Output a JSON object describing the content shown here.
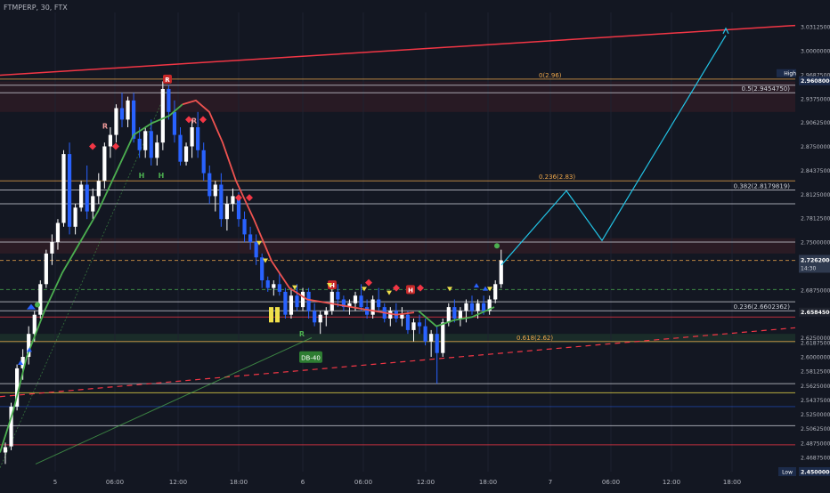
{
  "header": {
    "title": "FTMPERP, 30, FTX"
  },
  "colors": {
    "background": "#131722",
    "up_candle": "#ffffff",
    "down_candle": "#2962ff",
    "accent_red": "#f23645",
    "accent_green": "#4caf50",
    "projection": "#22c4e6",
    "fib_orange": "#f0a84b",
    "current_price_bg": "#2f3a4f"
  },
  "chart_data": {
    "type": "candlestick",
    "ylim": [
      2.45,
      3.05
    ],
    "price_ticks": [
      "3.0312500",
      "3.0000000",
      "2.9687500",
      "2.9375000",
      "2.9062500",
      "2.8750000",
      "2.8437500",
      "2.8125000",
      "2.7812500",
      "2.7500000",
      "2.7187500",
      "2.6875000",
      "2.6562500",
      "2.6250000",
      "2.6187500",
      "2.6000000",
      "2.5812500",
      "2.5625000",
      "2.5437500",
      "2.5250000",
      "2.5062500",
      "2.4875000",
      "2.4687500",
      "2.4500000"
    ],
    "time_ticks": [
      "5",
      "06:00",
      "12:00",
      "18:00",
      "6",
      "06:00",
      "12:00",
      "18:00",
      "7",
      "06:00",
      "12:00",
      "18:00"
    ],
    "high_label": "High",
    "high_value": "2.9608000",
    "low_label": "Low",
    "low_value": "2.4500000",
    "current_price": "2.7262000",
    "countdown": "14:30",
    "secondary_price": "2.6584500",
    "fib_labels": [
      {
        "text": "0(2.96)",
        "price": 2.963,
        "color": "#f0a84b"
      },
      {
        "text": "0.5(2.9454750)",
        "price": 2.9455,
        "color": "#d1d4dc"
      },
      {
        "text": "0.236(2.83)",
        "price": 2.83,
        "color": "#f0a84b"
      },
      {
        "text": "0.382(2.8179819)",
        "price": 2.818,
        "color": "#d1d4dc"
      },
      {
        "text": "0.236(2.6602362)",
        "price": 2.6602,
        "color": "#d1d4dc"
      },
      {
        "text": "0.618(2.62)",
        "price": 2.62,
        "color": "#f0a84b"
      }
    ],
    "annotation": "DB-40",
    "candles": [
      [
        2.475,
        2.488,
        2.46,
        2.482
      ],
      [
        2.483,
        2.54,
        2.478,
        2.535
      ],
      [
        2.535,
        2.59,
        2.53,
        2.585
      ],
      [
        2.585,
        2.61,
        2.57,
        2.6
      ],
      [
        2.6,
        2.64,
        2.59,
        2.63
      ],
      [
        2.63,
        2.66,
        2.62,
        2.655
      ],
      [
        2.655,
        2.7,
        2.65,
        2.695
      ],
      [
        2.695,
        2.74,
        2.69,
        2.735
      ],
      [
        2.735,
        2.76,
        2.72,
        2.75
      ],
      [
        2.75,
        2.78,
        2.74,
        2.775
      ],
      [
        2.775,
        2.87,
        2.77,
        2.865
      ],
      [
        2.865,
        2.88,
        2.76,
        2.77
      ],
      [
        2.77,
        2.8,
        2.76,
        2.795
      ],
      [
        2.795,
        2.83,
        2.79,
        2.825
      ],
      [
        2.825,
        2.85,
        2.78,
        2.79
      ],
      [
        2.79,
        2.82,
        2.78,
        2.81
      ],
      [
        2.81,
        2.84,
        2.8,
        2.83
      ],
      [
        2.83,
        2.88,
        2.82,
        2.875
      ],
      [
        2.875,
        2.9,
        2.86,
        2.89
      ],
      [
        2.89,
        2.93,
        2.88,
        2.925
      ],
      [
        2.925,
        2.945,
        2.9,
        2.91
      ],
      [
        2.91,
        2.94,
        2.9,
        2.935
      ],
      [
        2.935,
        2.945,
        2.88,
        2.885
      ],
      [
        2.885,
        2.9,
        2.86,
        2.87
      ],
      [
        2.87,
        2.9,
        2.86,
        2.895
      ],
      [
        2.895,
        2.91,
        2.85,
        2.86
      ],
      [
        2.86,
        2.89,
        2.85,
        2.88
      ],
      [
        2.88,
        2.96,
        2.87,
        2.95
      ],
      [
        2.95,
        2.955,
        2.91,
        2.92
      ],
      [
        2.92,
        2.935,
        2.88,
        2.89
      ],
      [
        2.89,
        2.9,
        2.85,
        2.855
      ],
      [
        2.855,
        2.88,
        2.85,
        2.875
      ],
      [
        2.875,
        2.91,
        2.86,
        2.9
      ],
      [
        2.9,
        2.92,
        2.86,
        2.87
      ],
      [
        2.87,
        2.88,
        2.83,
        2.84
      ],
      [
        2.84,
        2.85,
        2.8,
        2.81
      ],
      [
        2.81,
        2.83,
        2.79,
        2.825
      ],
      [
        2.825,
        2.84,
        2.77,
        2.78
      ],
      [
        2.78,
        2.81,
        2.765,
        2.8
      ],
      [
        2.8,
        2.82,
        2.79,
        2.81
      ],
      [
        2.81,
        2.815,
        2.77,
        2.78
      ],
      [
        2.78,
        2.79,
        2.75,
        2.76
      ],
      [
        2.76,
        2.77,
        2.74,
        2.75
      ],
      [
        2.75,
        2.76,
        2.72,
        2.73
      ],
      [
        2.73,
        2.735,
        2.69,
        2.7
      ],
      [
        2.7,
        2.705,
        2.685,
        2.69
      ],
      [
        2.69,
        2.7,
        2.68,
        2.695
      ],
      [
        2.695,
        2.71,
        2.68,
        2.685
      ],
      [
        2.685,
        2.69,
        2.65,
        2.655
      ],
      [
        2.655,
        2.69,
        2.65,
        2.68
      ],
      [
        2.68,
        2.695,
        2.66,
        2.665
      ],
      [
        2.665,
        2.69,
        2.66,
        2.685
      ],
      [
        2.685,
        2.69,
        2.65,
        2.66
      ],
      [
        2.66,
        2.67,
        2.64,
        2.645
      ],
      [
        2.645,
        2.66,
        2.63,
        2.655
      ],
      [
        2.655,
        2.665,
        2.64,
        2.66
      ],
      [
        2.66,
        2.69,
        2.655,
        2.685
      ],
      [
        2.685,
        2.695,
        2.665,
        2.675
      ],
      [
        2.675,
        2.68,
        2.66,
        2.665
      ],
      [
        2.665,
        2.675,
        2.655,
        2.67
      ],
      [
        2.67,
        2.685,
        2.66,
        2.68
      ],
      [
        2.68,
        2.695,
        2.66,
        2.665
      ],
      [
        2.665,
        2.675,
        2.65,
        2.655
      ],
      [
        2.655,
        2.68,
        2.65,
        2.675
      ],
      [
        2.675,
        2.69,
        2.66,
        2.665
      ],
      [
        2.665,
        2.67,
        2.645,
        2.65
      ],
      [
        2.65,
        2.665,
        2.64,
        2.66
      ],
      [
        2.66,
        2.67,
        2.645,
        2.65
      ],
      [
        2.65,
        2.665,
        2.64,
        2.655
      ],
      [
        2.655,
        2.66,
        2.63,
        2.635
      ],
      [
        2.635,
        2.65,
        2.62,
        2.645
      ],
      [
        2.645,
        2.655,
        2.63,
        2.64
      ],
      [
        2.64,
        2.65,
        2.615,
        2.62
      ],
      [
        2.62,
        2.635,
        2.6,
        2.63
      ],
      [
        2.63,
        2.64,
        2.565,
        2.605
      ],
      [
        2.605,
        2.65,
        2.6,
        2.645
      ],
      [
        2.645,
        2.67,
        2.64,
        2.665
      ],
      [
        2.665,
        2.675,
        2.645,
        2.65
      ],
      [
        2.65,
        2.665,
        2.64,
        2.66
      ],
      [
        2.66,
        2.675,
        2.645,
        2.67
      ],
      [
        2.67,
        2.68,
        2.655,
        2.66
      ],
      [
        2.66,
        2.675,
        2.65,
        2.67
      ],
      [
        2.67,
        2.68,
        2.655,
        2.66
      ],
      [
        2.66,
        2.68,
        2.655,
        2.675
      ],
      [
        2.675,
        2.7,
        2.67,
        2.695
      ],
      [
        2.695,
        2.74,
        2.69,
        2.726
      ]
    ],
    "projection": [
      [
        2.72,
        2.817
      ],
      [
        2.745,
        2.819
      ],
      [
        2.815,
        2.855
      ],
      [
        2.752,
        2.875
      ],
      [
        3.02,
        2.96
      ]
    ]
  }
}
